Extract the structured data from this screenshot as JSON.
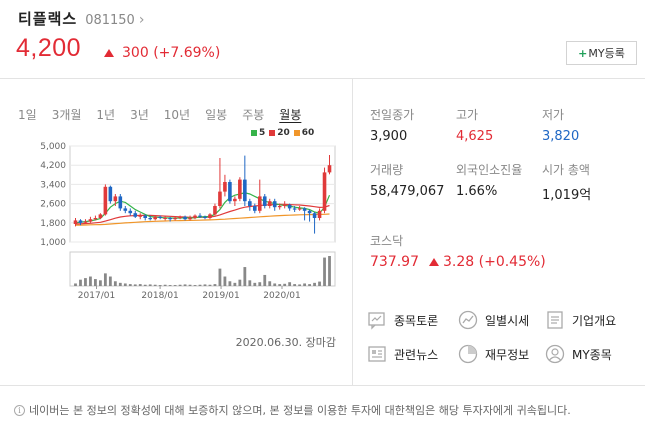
{
  "stock": {
    "name": "티플랙스",
    "code": "081150",
    "price": "4,200",
    "change": "300",
    "change_pct": "(+7.69%)",
    "my_button": "MY등록"
  },
  "periods": [
    "1일",
    "3개월",
    "1년",
    "3년",
    "10년",
    "일봉",
    "주봉",
    "월봉"
  ],
  "legend": [
    {
      "label": "5",
      "color": "#36b34a"
    },
    {
      "label": "20",
      "color": "#e03a3a"
    },
    {
      "label": "60",
      "color": "#f0962a"
    }
  ],
  "chart_caption": "2020.06.30. 장마감",
  "stats": [
    {
      "label": "전일종가",
      "value": "3,900",
      "tone": ""
    },
    {
      "label": "고가",
      "value": "4,625",
      "tone": "red"
    },
    {
      "label": "저가",
      "value": "3,820",
      "tone": "blue"
    },
    {
      "label": "거래량",
      "value": "58,479,067",
      "tone": ""
    },
    {
      "label": "외국인소진율",
      "value": "1.66%",
      "tone": ""
    },
    {
      "label": "시가 총액",
      "value": "1,019억",
      "tone": ""
    }
  ],
  "index": {
    "label": "코스닥",
    "value": "737.97",
    "change": "3.28",
    "change_pct": "(+0.45%)"
  },
  "links": [
    "종목토론",
    "일별시세",
    "기업개요",
    "관련뉴스",
    "재무정보",
    "MY종목"
  ],
  "footer": "네이버는 본 정보의 정확성에 대해 보증하지 않으며, 본 정보를 이용한 투자에 대한책임은 해당 투자자에게 귀속됩니다.",
  "chart_data": {
    "type": "candlestick",
    "y_ticks": [
      "5,000",
      "4,200",
      "3,400",
      "2,600",
      "1,800",
      "1,000"
    ],
    "x_ticks": [
      "2017/01",
      "2018/01",
      "2019/01",
      "2020/01"
    ],
    "ylim": [
      1000,
      5000
    ],
    "candles": [
      {
        "o": 1750,
        "c": 1900,
        "h": 2000,
        "l": 1650
      },
      {
        "o": 1900,
        "c": 1800,
        "h": 1950,
        "l": 1700
      },
      {
        "o": 1800,
        "c": 1850,
        "h": 1950,
        "l": 1750
      },
      {
        "o": 1850,
        "c": 1950,
        "h": 2050,
        "l": 1800
      },
      {
        "o": 1950,
        "c": 2000,
        "h": 2100,
        "l": 1900
      },
      {
        "o": 2000,
        "c": 2150,
        "h": 2200,
        "l": 1950
      },
      {
        "o": 2150,
        "c": 3300,
        "h": 3400,
        "l": 2100
      },
      {
        "o": 3300,
        "c": 2700,
        "h": 3350,
        "l": 2600
      },
      {
        "o": 2700,
        "c": 2900,
        "h": 3000,
        "l": 2500
      },
      {
        "o": 2900,
        "c": 2400,
        "h": 3000,
        "l": 2300
      },
      {
        "o": 2400,
        "c": 2300,
        "h": 2500,
        "l": 2200
      },
      {
        "o": 2300,
        "c": 2200,
        "h": 2400,
        "l": 2100
      },
      {
        "o": 2200,
        "c": 2050,
        "h": 2300,
        "l": 2000
      },
      {
        "o": 2050,
        "c": 2100,
        "h": 2200,
        "l": 1950
      },
      {
        "o": 2100,
        "c": 2000,
        "h": 2150,
        "l": 1900
      },
      {
        "o": 2000,
        "c": 1950,
        "h": 2100,
        "l": 1900
      },
      {
        "o": 1950,
        "c": 2050,
        "h": 2100,
        "l": 1900
      },
      {
        "o": 2050,
        "c": 2000,
        "h": 2100,
        "l": 1950
      },
      {
        "o": 2000,
        "c": 2000,
        "h": 2100,
        "l": 1900
      },
      {
        "o": 2000,
        "c": 1950,
        "h": 2050,
        "l": 1850
      },
      {
        "o": 1950,
        "c": 2000,
        "h": 2050,
        "l": 1900
      },
      {
        "o": 2000,
        "c": 2050,
        "h": 2100,
        "l": 1950
      },
      {
        "o": 2050,
        "c": 1950,
        "h": 2100,
        "l": 1900
      },
      {
        "o": 1950,
        "c": 2000,
        "h": 2100,
        "l": 1900
      },
      {
        "o": 2000,
        "c": 2100,
        "h": 2150,
        "l": 1950
      },
      {
        "o": 2100,
        "c": 2050,
        "h": 2200,
        "l": 2000
      },
      {
        "o": 2050,
        "c": 2000,
        "h": 2100,
        "l": 1950
      },
      {
        "o": 2000,
        "c": 2150,
        "h": 2200,
        "l": 1950
      },
      {
        "o": 2150,
        "c": 2500,
        "h": 2600,
        "l": 2100
      },
      {
        "o": 2500,
        "c": 3100,
        "h": 4500,
        "l": 2400
      },
      {
        "o": 3100,
        "c": 3500,
        "h": 3800,
        "l": 2900
      },
      {
        "o": 3500,
        "c": 2700,
        "h": 3600,
        "l": 2600
      },
      {
        "o": 2700,
        "c": 2800,
        "h": 2900,
        "l": 2500
      },
      {
        "o": 2800,
        "c": 3600,
        "h": 3700,
        "l": 2700
      },
      {
        "o": 3600,
        "c": 2700,
        "h": 4600,
        "l": 2500
      },
      {
        "o": 2700,
        "c": 2500,
        "h": 2800,
        "l": 2300
      },
      {
        "o": 2500,
        "c": 2300,
        "h": 2600,
        "l": 2200
      },
      {
        "o": 2300,
        "c": 2900,
        "h": 3600,
        "l": 2200
      },
      {
        "o": 2900,
        "c": 2500,
        "h": 3000,
        "l": 2400
      },
      {
        "o": 2500,
        "c": 2700,
        "h": 2800,
        "l": 2400
      },
      {
        "o": 2700,
        "c": 2450,
        "h": 2800,
        "l": 2300
      },
      {
        "o": 2450,
        "c": 2500,
        "h": 2600,
        "l": 2350
      },
      {
        "o": 2500,
        "c": 2550,
        "h": 2700,
        "l": 2400
      },
      {
        "o": 2550,
        "c": 2400,
        "h": 2600,
        "l": 2300
      },
      {
        "o": 2400,
        "c": 2350,
        "h": 2500,
        "l": 2250
      },
      {
        "o": 2350,
        "c": 2400,
        "h": 2500,
        "l": 2300
      },
      {
        "o": 2400,
        "c": 2300,
        "h": 2450,
        "l": 1900
      },
      {
        "o": 2300,
        "c": 2200,
        "h": 2350,
        "l": 1850
      },
      {
        "o": 2200,
        "c": 2000,
        "h": 2250,
        "l": 1350
      },
      {
        "o": 2000,
        "c": 2300,
        "h": 2400,
        "l": 1900
      },
      {
        "o": 2300,
        "c": 3900,
        "h": 4100,
        "l": 2200
      },
      {
        "o": 3900,
        "c": 4200,
        "h": 4625,
        "l": 3820
      }
    ],
    "ma5": [
      1800,
      1830,
      1850,
      1880,
      1920,
      1980,
      2200,
      2450,
      2600,
      2700,
      2650,
      2500,
      2350,
      2250,
      2150,
      2060,
      2040,
      2020,
      2010,
      2000,
      1990,
      2000,
      2010,
      2000,
      2010,
      2040,
      2060,
      2060,
      2160,
      2350,
      2650,
      2850,
      2950,
      3000,
      3050,
      3000,
      2900,
      2800,
      2700,
      2650,
      2600,
      2550,
      2520,
      2500,
      2450,
      2420,
      2400,
      2350,
      2250,
      2200,
      2450,
      2950
    ],
    "ma20": [
      1750,
      1760,
      1770,
      1780,
      1800,
      1820,
      1870,
      1930,
      1990,
      2040,
      2070,
      2090,
      2100,
      2110,
      2110,
      2110,
      2100,
      2090,
      2080,
      2070,
      2060,
      2050,
      2040,
      2030,
      2030,
      2030,
      2030,
      2040,
      2070,
      2130,
      2200,
      2270,
      2330,
      2400,
      2450,
      2480,
      2500,
      2520,
      2540,
      2550,
      2560,
      2570,
      2570,
      2560,
      2550,
      2540,
      2520,
      2500,
      2470,
      2440,
      2450,
      2520
    ],
    "ma60": [
      1700,
      1705,
      1710,
      1715,
      1720,
      1725,
      1735,
      1750,
      1765,
      1780,
      1795,
      1810,
      1822,
      1834,
      1845,
      1855,
      1863,
      1870,
      1876,
      1882,
      1887,
      1892,
      1896,
      1900,
      1905,
      1910,
      1916,
      1922,
      1930,
      1940,
      1952,
      1965,
      1978,
      1992,
      2006,
      2020,
      2034,
      2048,
      2062,
      2075,
      2087,
      2098,
      2108,
      2117,
      2125,
      2132,
      2138,
      2142,
      2145,
      2148,
      2155,
      2165
    ],
    "volume": [
      8,
      20,
      25,
      30,
      22,
      18,
      40,
      30,
      15,
      10,
      8,
      6,
      5,
      6,
      4,
      5,
      4,
      3,
      4,
      3,
      3,
      4,
      5,
      4,
      3,
      4,
      5,
      4,
      6,
      55,
      30,
      15,
      10,
      20,
      60,
      18,
      10,
      12,
      35,
      15,
      8,
      6,
      7,
      12,
      6,
      5,
      8,
      6,
      10,
      14,
      90,
      95
    ]
  }
}
